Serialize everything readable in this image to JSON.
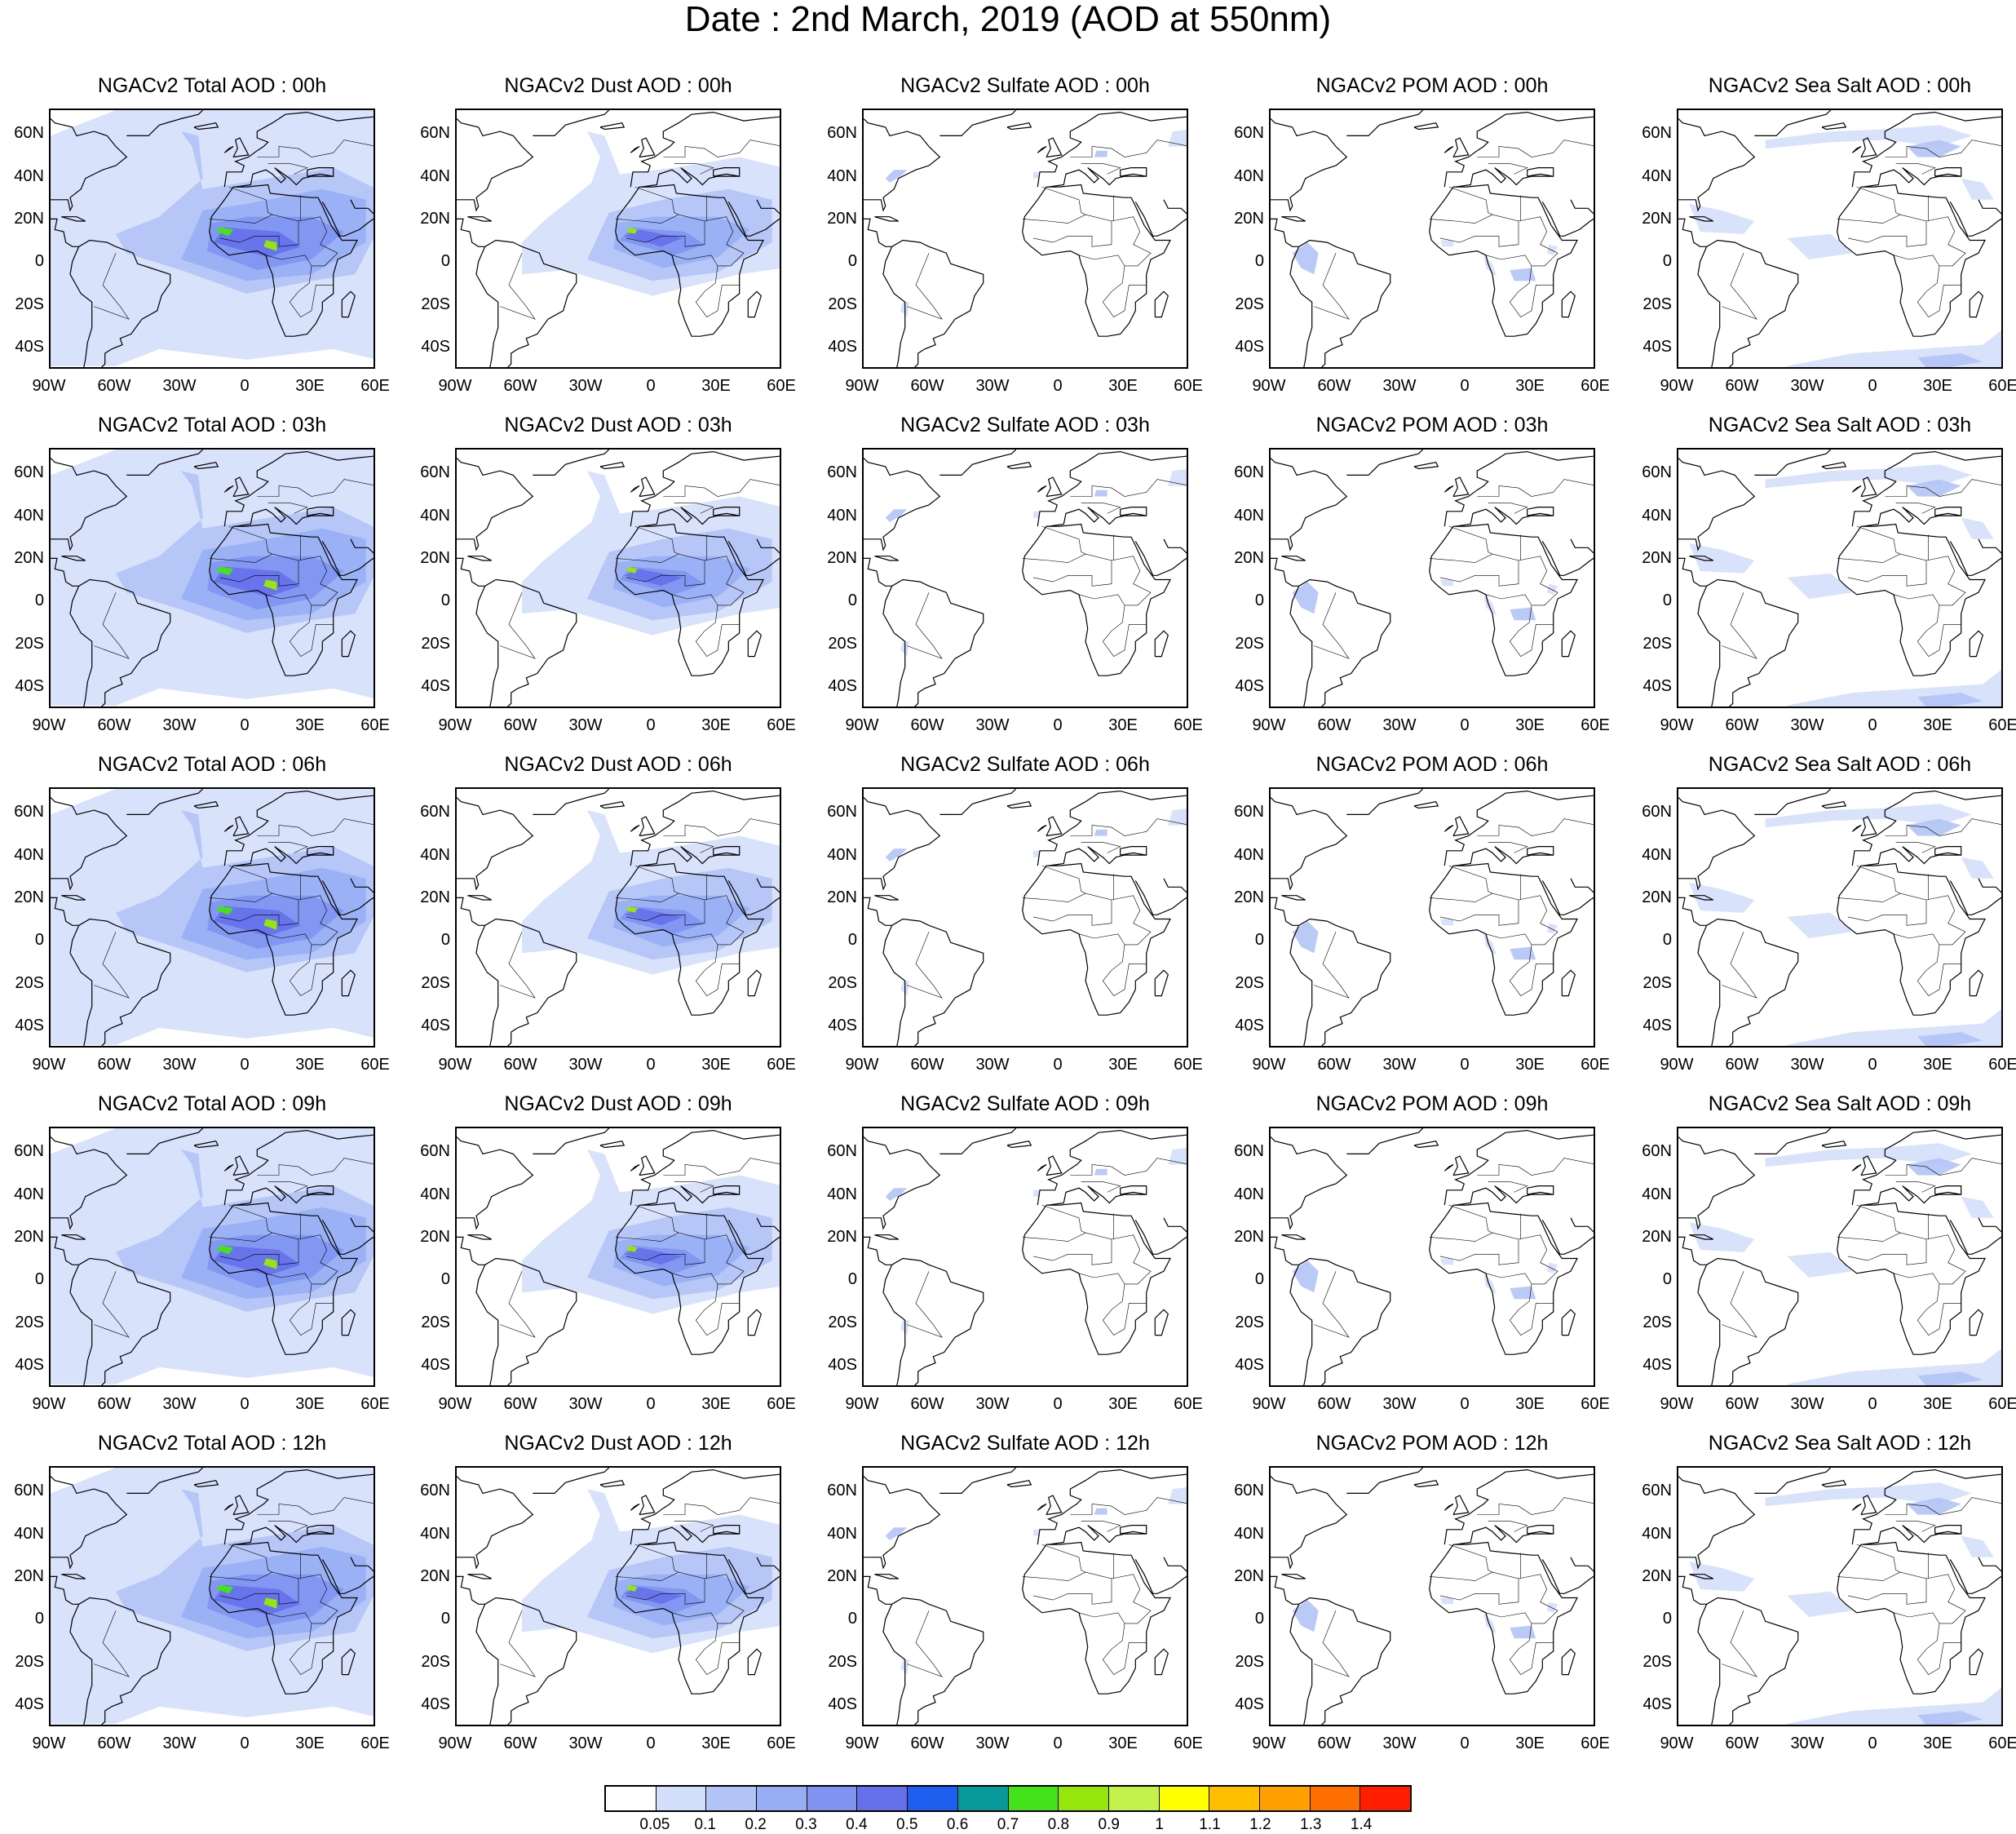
{
  "title": "Date : 2nd March, 2019 (AOD at 550nm)",
  "panels": [
    {
      "title": "NGACv2 Total AOD : 00h",
      "species": "total"
    },
    {
      "title": "NGACv2 Dust AOD : 00h",
      "species": "dust"
    },
    {
      "title": "NGACv2 Sulfate AOD : 00h",
      "species": "sulfate"
    },
    {
      "title": "NGACv2 POM AOD : 00h",
      "species": "pom"
    },
    {
      "title": "NGACv2 Sea Salt AOD : 00h",
      "species": "seasalt"
    },
    {
      "title": "NGACv2 Total AOD : 03h",
      "species": "total"
    },
    {
      "title": "NGACv2 Dust AOD : 03h",
      "species": "dust"
    },
    {
      "title": "NGACv2 Sulfate AOD : 03h",
      "species": "sulfate"
    },
    {
      "title": "NGACv2 POM AOD : 03h",
      "species": "pom"
    },
    {
      "title": "NGACv2 Sea Salt AOD : 03h",
      "species": "seasalt"
    },
    {
      "title": "NGACv2 Total AOD : 06h",
      "species": "total"
    },
    {
      "title": "NGACv2 Dust AOD : 06h",
      "species": "dust"
    },
    {
      "title": "NGACv2 Sulfate AOD : 06h",
      "species": "sulfate"
    },
    {
      "title": "NGACv2 POM AOD : 06h",
      "species": "pom"
    },
    {
      "title": "NGACv2 Sea Salt AOD : 06h",
      "species": "seasalt"
    },
    {
      "title": "NGACv2 Total AOD : 09h",
      "species": "total"
    },
    {
      "title": "NGACv2 Dust AOD : 09h",
      "species": "dust"
    },
    {
      "title": "NGACv2 Sulfate AOD : 09h",
      "species": "sulfate"
    },
    {
      "title": "NGACv2 POM AOD : 09h",
      "species": "pom"
    },
    {
      "title": "NGACv2 Sea Salt  AOD : 09h",
      "species": "seasalt"
    },
    {
      "title": "NGACv2 Total AOD  : 12h",
      "species": "total"
    },
    {
      "title": "NGACv2 Dust AOD : 12h",
      "species": "dust"
    },
    {
      "title": "NGACv2 Sulfate AOD : 12h",
      "species": "sulfate"
    },
    {
      "title": "NGACv2 POM  AOD : 12h",
      "species": "pom"
    },
    {
      "title": "NGACv2 Sea Salt  AOD : 12h",
      "species": "seasalt"
    }
  ],
  "lat_labels": [
    "60N",
    "40N",
    "20N",
    "0",
    "20S",
    "40S"
  ],
  "lon_labels": [
    "90W",
    "60W",
    "30W",
    "0",
    "30E",
    "60E"
  ],
  "colorbar": {
    "colors": [
      "#ffffff",
      "#d4dffb",
      "#b3c4f6",
      "#97aef4",
      "#7f95f1",
      "#6570ea",
      "#1f5ff0",
      "#089a9a",
      "#44e21a",
      "#97e60b",
      "#c3f24c",
      "#ffff00",
      "#ffbe00",
      "#ff9f00",
      "#ff6e00",
      "#ff1e00"
    ],
    "labels": [
      "0.05",
      "0.1",
      "0.2",
      "0.3",
      "0.4",
      "0.5",
      "0.6",
      "0.7",
      "0.8",
      "0.9",
      "1",
      "1.1",
      "1.2",
      "1.3",
      "1.4"
    ]
  }
}
